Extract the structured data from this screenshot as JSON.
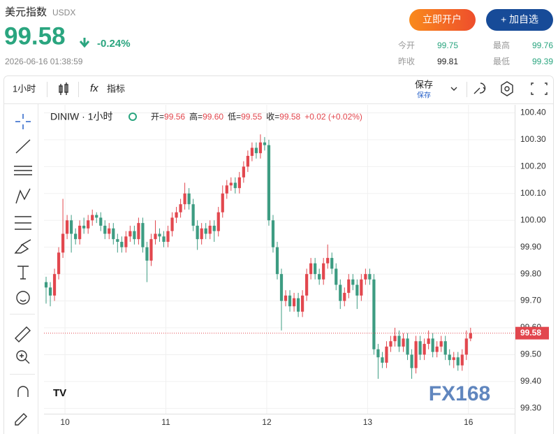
{
  "header": {
    "title": "美元指数",
    "code": "USDX",
    "price": "99.58",
    "change": "-0.24%",
    "datetime": "2026-06-16 01:38:59",
    "buttons": [
      "立即开户",
      "+ 加自选"
    ],
    "stats": [
      {
        "label": "今开",
        "value": "99.75"
      },
      {
        "label": "最高",
        "value": "99.76"
      },
      {
        "label": "昨收",
        "value": "99.81"
      },
      {
        "label": "最低",
        "value": "99.39"
      }
    ]
  },
  "toolbar": {
    "interval": "1小时",
    "indicators": "指标",
    "save": "保存",
    "save_sub": "保存"
  },
  "chart_data": {
    "type": "candlestick",
    "symbol": "DINIW · 1小时",
    "legend": [
      {
        "label": "开=",
        "value": "99.56"
      },
      {
        "label": "高=",
        "value": "99.60"
      },
      {
        "label": "低=",
        "value": "99.55"
      },
      {
        "label": "收=",
        "value": "99.58"
      }
    ],
    "legend_change": "+0.02 (+0.02%)",
    "watermark": "FX168",
    "up_color": "#e2474e",
    "down_color": "#3d9c82",
    "last_price": 99.58,
    "last_price_label": "99.58",
    "open": [
      99.77,
      99.75,
      99.72,
      99.8,
      99.88,
      99.95,
      100.0,
      99.95,
      99.93,
      99.98,
      99.97,
      100.0,
      100.02,
      100.01,
      99.98,
      99.95,
      99.97,
      99.93,
      99.92,
      99.9,
      99.94,
      99.96,
      99.93,
      99.99,
      99.9,
      99.85,
      99.93,
      99.95,
      99.94,
      99.92,
      99.96,
      100.01,
      100.03,
      100.06,
      100.1,
      100.06,
      99.98,
      99.93,
      99.97,
      99.95,
      99.98,
      99.96,
      100.03,
      100.1,
      100.13,
      100.14,
      100.12,
      100.16,
      100.2,
      100.24,
      100.27,
      100.25,
      100.29,
      100.28,
      100.0,
      99.9,
      99.8,
      99.7,
      99.72,
      99.68,
      99.71,
      99.66,
      99.72,
      99.8,
      99.84,
      99.8,
      99.78,
      99.84,
      99.86,
      99.82,
      99.76,
      99.7,
      99.73,
      99.78,
      99.76,
      99.72,
      99.78,
      99.8,
      99.78,
      99.52,
      99.49,
      99.47,
      99.53,
      99.55,
      99.57,
      99.53,
      99.56,
      99.5,
      99.45,
      99.55,
      99.5,
      99.54,
      99.56,
      99.51,
      99.53,
      99.55,
      99.5,
      99.48,
      99.49,
      99.46,
      99.5,
      99.56
    ],
    "high": [
      99.79,
      99.77,
      99.82,
      99.9,
      100.08,
      100.02,
      100.02,
      99.97,
      100.0,
      100.01,
      100.02,
      100.04,
      100.03,
      100.03,
      100.0,
      99.99,
      99.99,
      99.95,
      99.94,
      99.96,
      99.98,
      99.98,
      100.01,
      100.01,
      99.92,
      99.95,
      100.0,
      99.97,
      99.96,
      99.98,
      100.03,
      100.05,
      100.08,
      100.14,
      100.12,
      100.08,
      100.0,
      99.99,
      99.99,
      100.0,
      100.0,
      100.05,
      100.13,
      100.15,
      100.16,
      100.16,
      100.18,
      100.22,
      100.26,
      100.29,
      100.29,
      100.32,
      100.31,
      100.3,
      100.02,
      99.92,
      99.82,
      99.74,
      99.74,
      99.73,
      99.73,
      99.74,
      99.82,
      99.86,
      99.86,
      99.82,
      99.86,
      99.91,
      99.88,
      99.84,
      99.78,
      99.75,
      99.8,
      99.8,
      99.78,
      99.8,
      99.82,
      99.82,
      99.8,
      99.54,
      99.51,
      99.55,
      99.57,
      99.6,
      99.59,
      99.58,
      99.58,
      99.52,
      99.57,
      99.57,
      99.56,
      99.59,
      99.58,
      99.55,
      99.57,
      99.57,
      99.52,
      99.51,
      99.51,
      99.52,
      99.59,
      99.6
    ],
    "low": [
      99.69,
      99.68,
      99.7,
      99.78,
      99.86,
      99.93,
      99.88,
      99.91,
      99.91,
      99.95,
      99.95,
      99.98,
      99.99,
      99.96,
      99.93,
      99.93,
      99.91,
      99.88,
      99.88,
      99.88,
      99.92,
      99.91,
      99.91,
      99.88,
      99.77,
      99.83,
      99.91,
      99.92,
      99.9,
      99.9,
      99.94,
      99.99,
      100.01,
      100.04,
      100.04,
      99.96,
      99.89,
      99.91,
      99.93,
      99.93,
      99.92,
      99.94,
      100.01,
      100.08,
      100.11,
      100.1,
      100.1,
      100.14,
      100.18,
      100.22,
      100.23,
      100.23,
      100.26,
      99.98,
      99.88,
      99.78,
      99.59,
      99.68,
      99.66,
      99.66,
      99.64,
      99.64,
      99.7,
      99.78,
      99.78,
      99.76,
      99.76,
      99.82,
      99.8,
      99.74,
      99.67,
      99.68,
      99.71,
      99.74,
      99.67,
      99.7,
      99.76,
      99.76,
      99.5,
      99.41,
      99.45,
      99.45,
      99.51,
      99.53,
      99.51,
      99.51,
      99.48,
      99.41,
      99.43,
      99.48,
      99.48,
      99.52,
      99.49,
      99.49,
      99.51,
      99.48,
      99.46,
      99.45,
      99.44,
      99.44,
      99.48,
      99.55
    ],
    "close": [
      99.75,
      99.72,
      99.8,
      99.88,
      99.95,
      100.0,
      99.95,
      99.93,
      99.98,
      99.97,
      100.0,
      100.02,
      100.01,
      99.98,
      99.95,
      99.97,
      99.93,
      99.92,
      99.9,
      99.94,
      99.96,
      99.93,
      99.99,
      99.9,
      99.85,
      99.93,
      99.95,
      99.94,
      99.92,
      99.96,
      100.01,
      100.03,
      100.06,
      100.1,
      100.06,
      99.98,
      99.93,
      99.97,
      99.95,
      99.98,
      99.96,
      100.03,
      100.1,
      100.13,
      100.14,
      100.12,
      100.16,
      100.2,
      100.24,
      100.27,
      100.25,
      100.29,
      100.28,
      100.0,
      99.9,
      99.8,
      99.7,
      99.72,
      99.68,
      99.71,
      99.66,
      99.72,
      99.8,
      99.84,
      99.8,
      99.78,
      99.84,
      99.86,
      99.82,
      99.76,
      99.7,
      99.73,
      99.78,
      99.76,
      99.72,
      99.78,
      99.8,
      99.78,
      99.52,
      99.49,
      99.47,
      99.53,
      99.55,
      99.57,
      99.53,
      99.56,
      99.5,
      99.45,
      99.55,
      99.5,
      99.54,
      99.56,
      99.51,
      99.53,
      99.55,
      99.5,
      99.48,
      99.49,
      99.46,
      99.5,
      99.56,
      99.58
    ],
    "xlim": [
      0,
      112
    ],
    "xticks": [
      {
        "value": 5,
        "label": "10"
      },
      {
        "value": 29,
        "label": "11"
      },
      {
        "value": 53,
        "label": "12"
      },
      {
        "value": 77,
        "label": "13"
      },
      {
        "value": 101,
        "label": "16"
      }
    ],
    "ylim": [
      99.28,
      100.43
    ],
    "yticks": [
      {
        "value": 100.4,
        "label": "100.40"
      },
      {
        "value": 100.3,
        "label": "100.30"
      },
      {
        "value": 100.2,
        "label": "100.20"
      },
      {
        "value": 100.1,
        "label": "100.10"
      },
      {
        "value": 100.0,
        "label": "100.00"
      },
      {
        "value": 99.9,
        "label": "99.90"
      },
      {
        "value": 99.8,
        "label": "99.80"
      },
      {
        "value": 99.7,
        "label": "99.70"
      },
      {
        "value": 99.6,
        "label": "99.60"
      },
      {
        "value": 99.5,
        "label": "99.50"
      },
      {
        "value": 99.4,
        "label": "99.40"
      },
      {
        "value": 99.3,
        "label": "99.30"
      }
    ],
    "grid": true
  }
}
